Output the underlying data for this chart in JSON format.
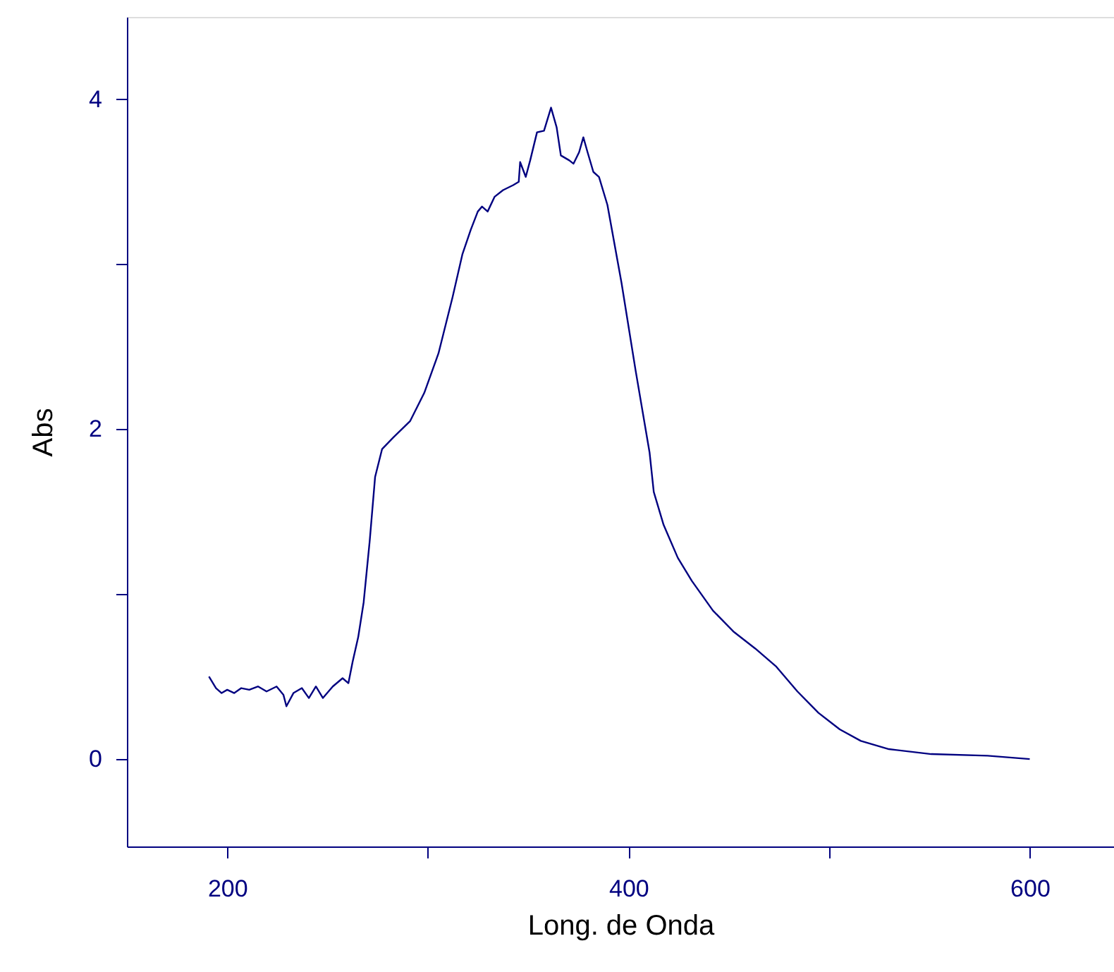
{
  "chart_data": {
    "type": "line",
    "xlabel": "Long. de Onda",
    "ylabel": "Abs",
    "x": [
      190.9,
      194.4,
      197.2,
      200,
      203.5,
      207,
      211,
      215.4,
      219.6,
      224.6,
      228,
      229.5,
      233,
      237.2,
      240.7,
      244.2,
      247.7,
      252.6,
      257.5,
      260.4,
      262.5,
      265.3,
      268,
      271,
      273.7,
      277.2,
      282.8,
      291.2,
      298.2,
      305.3,
      312.3,
      317.2,
      321.4,
      324.9,
      327,
      329.8,
      333.3,
      337.5,
      342.5,
      345.3,
      346,
      348.8,
      351,
      354.4,
      357.9,
      361.4,
      364.2,
      366.3,
      370.5,
      372.6,
      375.4,
      377.5,
      379.6,
      382.5,
      385.3,
      389.5,
      396.5,
      403.5,
      410.5,
      412.6,
      417.5,
      424.6,
      431.6,
      442.1,
      452.6,
      463.2,
      473.7,
      484.2,
      494.7,
      505.3,
      515.8,
      529.8,
      550.9,
      579,
      600
    ],
    "series": [
      {
        "color": "#000080",
        "values": [
          0.5,
          0.43,
          0.4,
          0.42,
          0.4,
          0.43,
          0.42,
          0.44,
          0.41,
          0.44,
          0.39,
          0.32,
          0.4,
          0.43,
          0.37,
          0.44,
          0.37,
          0.44,
          0.49,
          0.46,
          0.59,
          0.74,
          0.95,
          1.32,
          1.71,
          1.88,
          1.95,
          2.05,
          2.22,
          2.46,
          2.8,
          3.06,
          3.21,
          3.32,
          3.35,
          3.32,
          3.41,
          3.45,
          3.48,
          3.5,
          3.62,
          3.53,
          3.63,
          3.8,
          3.81,
          3.95,
          3.83,
          3.66,
          3.63,
          3.61,
          3.68,
          3.77,
          3.68,
          3.56,
          3.53,
          3.36,
          2.89,
          2.36,
          1.86,
          1.62,
          1.42,
          1.22,
          1.08,
          0.9,
          0.77,
          0.67,
          0.56,
          0.41,
          0.28,
          0.18,
          0.11,
          0.06,
          0.03,
          0.02,
          0.0
        ]
      }
    ],
    "xlim": [
      150,
      642
    ],
    "ylim": [
      -0.53,
      4.5
    ],
    "xticks": [
      200,
      {
        "value": 300,
        "label": null
      },
      400,
      {
        "value": 500,
        "label": null
      },
      600
    ],
    "yticks": [
      0,
      {
        "value": 1,
        "label": null
      },
      2,
      {
        "value": 3,
        "label": null
      },
      4
    ],
    "grid": false,
    "marker": "none",
    "line_style": "solid"
  }
}
